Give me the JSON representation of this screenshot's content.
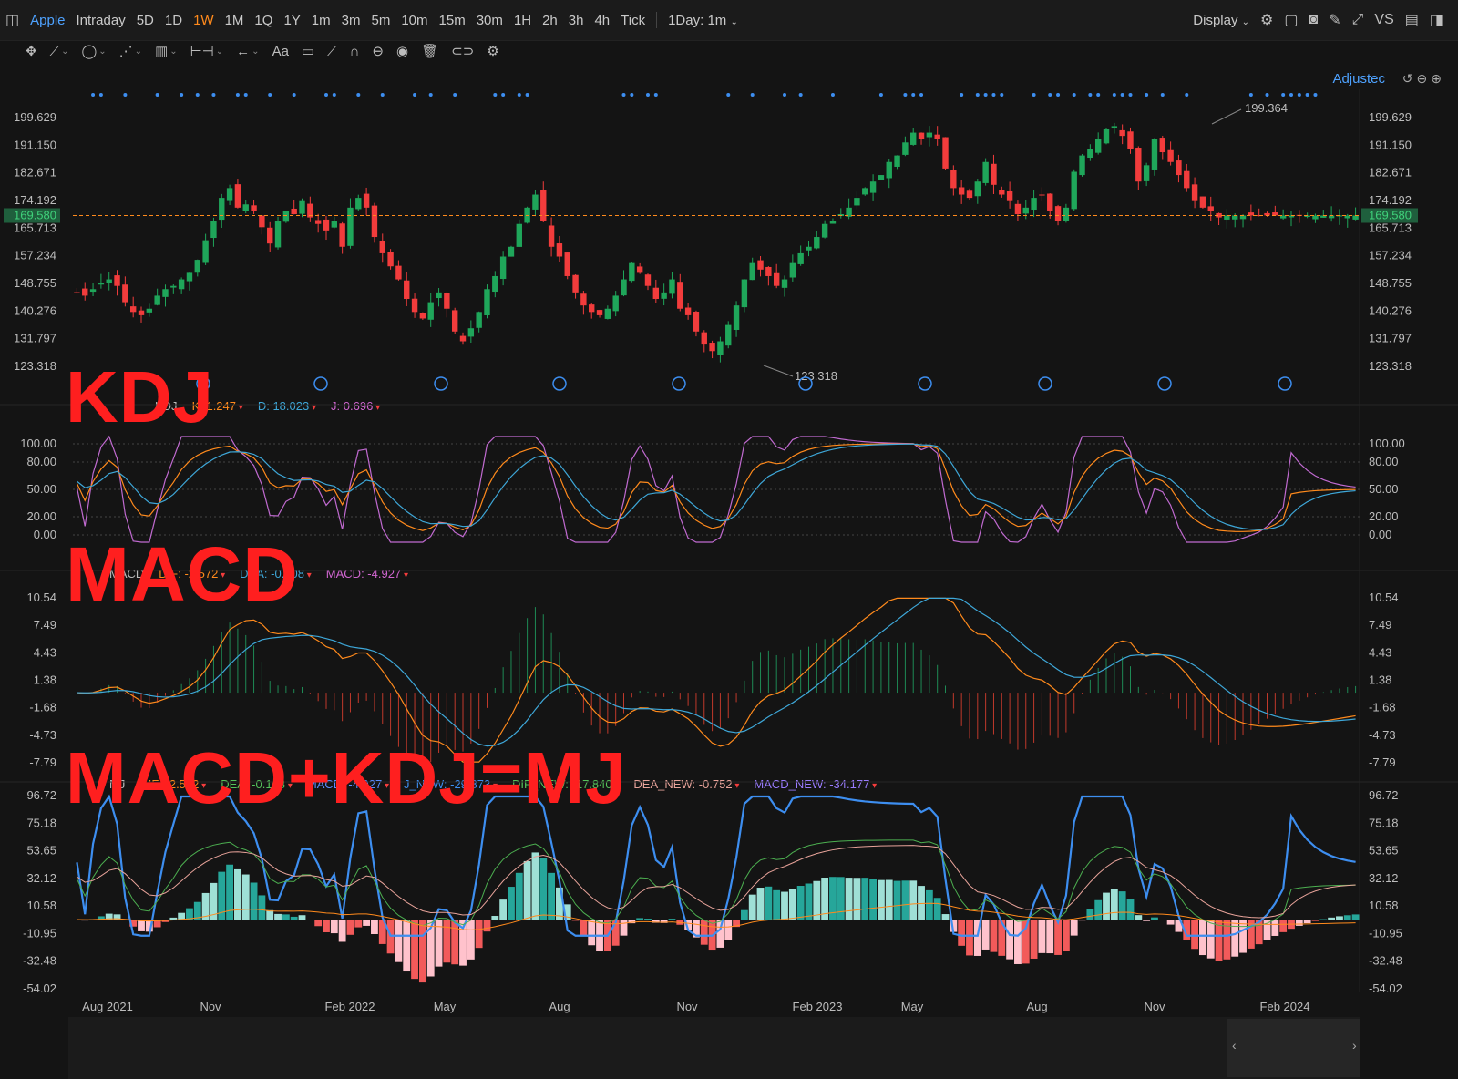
{
  "topbar": {
    "symbol": "Apple",
    "periods": [
      "Intraday",
      "5D",
      "1D",
      "1W",
      "1M",
      "1Q",
      "1Y",
      "1m",
      "3m",
      "5m",
      "10m",
      "15m",
      "30m",
      "1H",
      "2h",
      "3h",
      "4h",
      "Tick"
    ],
    "active_period": "1W",
    "interval_select": "1Day: 1m",
    "display_label": "Display",
    "vs_label": "VS"
  },
  "adjusted_label": "Adjustec",
  "annotations": {
    "kdj": "KDJ",
    "macd": "MACD",
    "mj": "MACD+KDJ=MJ"
  },
  "main_chart": {
    "y_ticks": [
      "199.629",
      "191.150",
      "182.671",
      "174.192",
      "165.713",
      "157.234",
      "148.755",
      "140.276",
      "131.797",
      "123.318"
    ],
    "current_price": "169.580",
    "high_label": "199.364",
    "low_label": "123.318",
    "colors": {
      "up": "#1fa65a",
      "down": "#f23c3c",
      "price_line": "#ff8a1c"
    }
  },
  "kdj_panel": {
    "legend": [
      {
        "label": "K:",
        "value": "1.247",
        "color": "#ff8a1c"
      },
      {
        "label": "D:",
        "value": "18.023",
        "color": "#3ea7d8"
      },
      {
        "label": "J:",
        "value": "0.696",
        "color": "#d066d0"
      }
    ],
    "legend_name": "KDJ",
    "y_ticks": [
      "100.00",
      "80.00",
      "50.00",
      "20.00",
      "0.00"
    ]
  },
  "macd_panel": {
    "legend": [
      {
        "label": "DIF:",
        "value": "-2.572",
        "color": "#ff8a1c"
      },
      {
        "label": "DEA:",
        "value": "-0.108",
        "color": "#3ea7d8"
      },
      {
        "label": "MACD:",
        "value": "-4.927",
        "color": "#d066d0"
      }
    ],
    "legend_name": "MACD",
    "y_ticks": [
      "10.54",
      "7.49",
      "4.43",
      "1.38",
      "-1.68",
      "-4.73",
      "-7.79"
    ]
  },
  "mj_panel": {
    "legend": [
      {
        "label": "DIF:",
        "value": "-2.572",
        "color": "#ff8a1c"
      },
      {
        "label": "DEA:",
        "value": "-0.108",
        "color": "#55c25a"
      },
      {
        "label": "MACD:",
        "value": "-4.927",
        "color": "#5a8cff"
      },
      {
        "label": "J_NEW:",
        "value": "-29.873",
        "color": "#3d8ef0"
      },
      {
        "label": "DIF_NEW:",
        "value": "-17.840",
        "color": "#55c25a"
      },
      {
        "label": "DEA_NEW:",
        "value": "-0.752",
        "color": "#e8a39a"
      },
      {
        "label": "MACD_NEW:",
        "value": "-34.177",
        "color": "#9a7cff"
      }
    ],
    "legend_name": "MJ",
    "y_ticks": [
      "96.72",
      "75.18",
      "53.65",
      "32.12",
      "10.58",
      "-10.95",
      "-32.48",
      "-54.02"
    ]
  },
  "x_axis": [
    "Aug 2021",
    "Nov",
    "Feb 2022",
    "May",
    "Aug",
    "Nov",
    "Feb 2023",
    "May",
    "Aug",
    "Nov",
    "Feb 2024"
  ]
}
